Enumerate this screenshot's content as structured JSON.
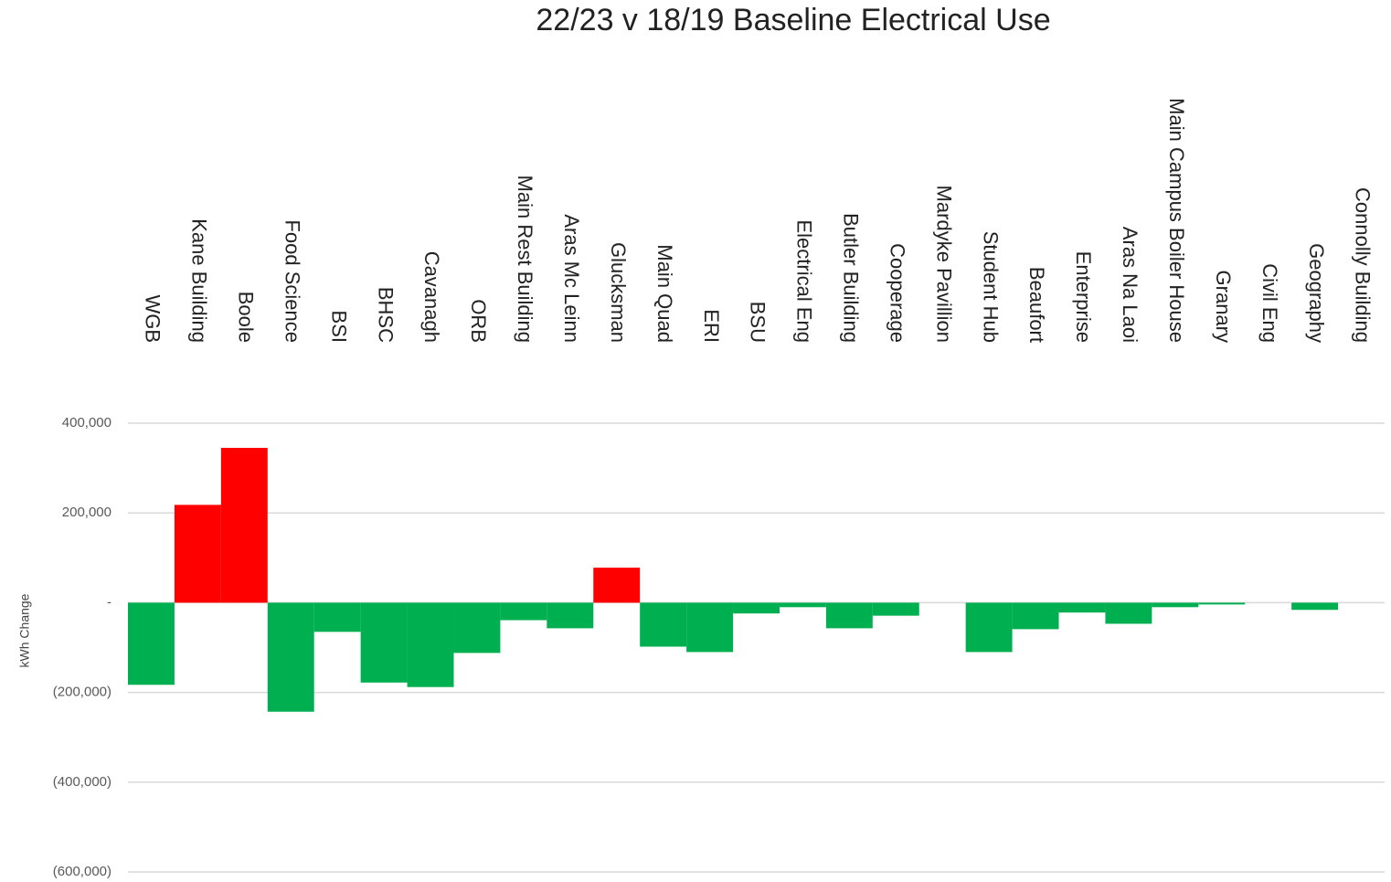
{
  "chart_data": {
    "type": "bar",
    "title": "22/23  v 18/19 Baseline Electrical Use",
    "y_label": "kWh Change",
    "categories": [
      "WGB",
      "Kane Building",
      "Boole",
      "Food Science",
      "BSI",
      "BHSC",
      "Cavanagh",
      "ORB",
      "Main Rest Building",
      "Aras Mc Leinn",
      "Glucksman",
      "Main Quad",
      "ERI",
      "BSU",
      "Electrical Eng",
      "Butler Building",
      "Cooperage",
      "Mardyke Pavillion",
      "Student Hub",
      "Beaufort",
      "Enterprise",
      "Aras Na Laoi",
      "Main Campus Boiler House",
      "Granary",
      "Civil Eng",
      "Geography",
      "Connolly Building"
    ],
    "values": [
      -183000,
      218000,
      345000,
      -243000,
      -65000,
      -178000,
      -188000,
      -112000,
      -39000,
      -57000,
      78000,
      -98000,
      -110000,
      -24000,
      -10000,
      -57000,
      -29000,
      0,
      -110000,
      -59000,
      -22000,
      -47000,
      -10000,
      -4000,
      0,
      -16000,
      0
    ],
    "positive_color": "#ff0000",
    "negative_color": "#00b050",
    "ylim": [
      -600000,
      400000
    ],
    "yticks": [
      {
        "value": -600000,
        "label": "(600,000)"
      },
      {
        "value": -400000,
        "label": "(400,000)"
      },
      {
        "value": -200000,
        "label": "(200,000)"
      },
      {
        "value": 0,
        "label": "-"
      },
      {
        "value": 200000,
        "label": "200,000"
      },
      {
        "value": 400000,
        "label": "400,000"
      }
    ],
    "grid": true
  }
}
